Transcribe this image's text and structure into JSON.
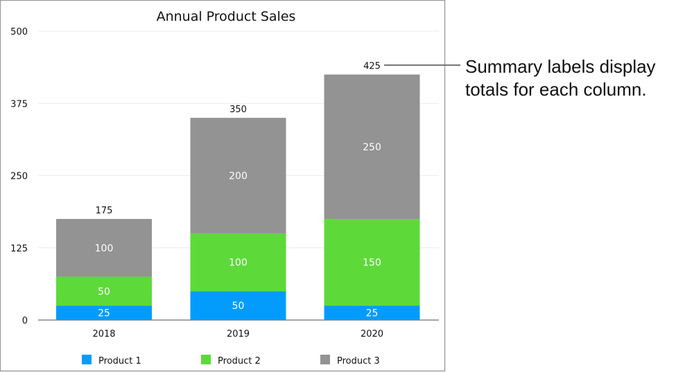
{
  "chart_data": {
    "type": "bar",
    "stacked": true,
    "title": "Annual Product Sales",
    "xlabel": "",
    "ylabel": "",
    "categories": [
      "2018",
      "2019",
      "2020"
    ],
    "series": [
      {
        "name": "Product 1",
        "values": [
          25,
          50,
          25
        ],
        "color": "#039cfd"
      },
      {
        "name": "Product 2",
        "values": [
          50,
          100,
          150
        ],
        "color": "#5dd93a"
      },
      {
        "name": "Product 3",
        "values": [
          100,
          200,
          250
        ],
        "color": "#939393"
      }
    ],
    "totals": [
      175,
      350,
      425
    ],
    "ylim": [
      0,
      500
    ],
    "yticks": [
      0,
      125,
      250,
      375,
      500
    ],
    "grid": true,
    "legend_position": "bottom"
  },
  "annotation": {
    "lines": [
      "Summary labels display",
      "totals for each column."
    ]
  }
}
